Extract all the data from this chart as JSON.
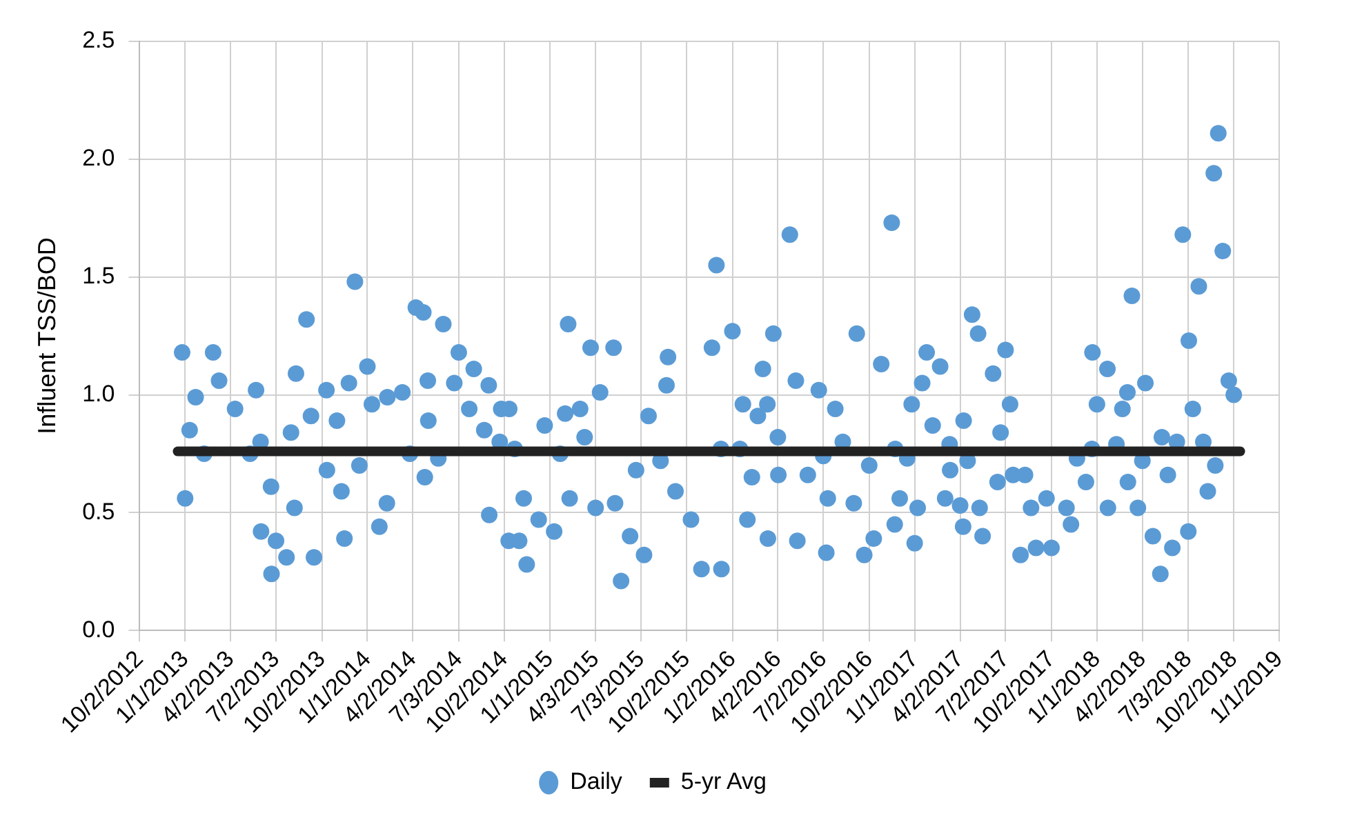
{
  "chart_data": {
    "type": "scatter",
    "ylabel": "Influent TSS/BOD",
    "xlim": [
      "2012-10-02",
      "2019-01-01"
    ],
    "xticks": [
      {
        "value": "2012-10-02",
        "label": "10/2/2012"
      },
      {
        "value": "2013-01-01",
        "label": "1/1/2013"
      },
      {
        "value": "2013-04-02",
        "label": "4/2/2013"
      },
      {
        "value": "2013-07-02",
        "label": "7/2/2013"
      },
      {
        "value": "2013-10-02",
        "label": "10/2/2013"
      },
      {
        "value": "2014-01-01",
        "label": "1/1/2014"
      },
      {
        "value": "2014-04-02",
        "label": "4/2/2014"
      },
      {
        "value": "2014-07-03",
        "label": "7/3/2014"
      },
      {
        "value": "2014-10-02",
        "label": "10/2/2014"
      },
      {
        "value": "2015-01-01",
        "label": "1/1/2015"
      },
      {
        "value": "2015-04-03",
        "label": "4/3/2015"
      },
      {
        "value": "2015-07-03",
        "label": "7/3/2015"
      },
      {
        "value": "2015-10-02",
        "label": "10/2/2015"
      },
      {
        "value": "2016-01-02",
        "label": "1/2/2016"
      },
      {
        "value": "2016-04-02",
        "label": "4/2/2016"
      },
      {
        "value": "2016-07-02",
        "label": "7/2/2016"
      },
      {
        "value": "2016-10-02",
        "label": "10/2/2016"
      },
      {
        "value": "2017-01-01",
        "label": "1/1/2017"
      },
      {
        "value": "2017-04-02",
        "label": "4/2/2017"
      },
      {
        "value": "2017-07-02",
        "label": "7/2/2017"
      },
      {
        "value": "2017-10-02",
        "label": "10/2/2017"
      },
      {
        "value": "2018-01-01",
        "label": "1/1/2018"
      },
      {
        "value": "2018-04-02",
        "label": "4/2/2018"
      },
      {
        "value": "2018-07-03",
        "label": "7/3/2018"
      },
      {
        "value": "2018-10-02",
        "label": "10/2/2018"
      },
      {
        "value": "2019-01-01",
        "label": "1/1/2019"
      }
    ],
    "ylim": [
      0,
      2.5
    ],
    "yticks": [
      {
        "value": 0,
        "label": "0.0"
      },
      {
        "value": 0.5,
        "label": "0.5"
      },
      {
        "value": 1,
        "label": "1.0"
      },
      {
        "value": 1.5,
        "label": "1.5"
      },
      {
        "value": 2,
        "label": "2.0"
      },
      {
        "value": 2.5,
        "label": "2.5"
      }
    ],
    "grid": true,
    "legend": "bottom",
    "series": [
      {
        "name": "Daily",
        "marker": "circle",
        "color": "#5b9bd5",
        "x": [
          "2012-12-26",
          "2013-01-01",
          "2013-01-10",
          "2013-01-22",
          "2013-02-08",
          "2013-02-26",
          "2013-03-10",
          "2013-04-11",
          "2013-05-11",
          "2013-05-23",
          "2013-06-01",
          "2013-06-02",
          "2013-06-22",
          "2013-06-23",
          "2013-07-02",
          "2013-07-23",
          "2013-08-01",
          "2013-08-08",
          "2013-08-11",
          "2013-09-01",
          "2013-09-10",
          "2013-09-16",
          "2013-10-11",
          "2013-10-12",
          "2013-11-01",
          "2013-11-10",
          "2013-11-16",
          "2013-11-25",
          "2013-12-07",
          "2013-12-16",
          "2014-01-01",
          "2014-01-10",
          "2014-01-25",
          "2014-02-09",
          "2014-02-10",
          "2014-03-12",
          "2014-03-27",
          "2014-04-08",
          "2014-04-23",
          "2014-04-26",
          "2014-05-02",
          "2014-05-03",
          "2014-05-23",
          "2014-06-02",
          "2014-06-24",
          "2014-07-03",
          "2014-07-24",
          "2014-08-02",
          "2014-08-23",
          "2014-09-01",
          "2014-09-02",
          "2014-09-23",
          "2014-09-26",
          "2014-10-11",
          "2014-10-12",
          "2014-10-23",
          "2014-11-01",
          "2014-11-10",
          "2014-11-16",
          "2014-12-10",
          "2014-12-22",
          "2015-01-10",
          "2015-01-22",
          "2015-02-01",
          "2015-02-07",
          "2015-02-10",
          "2015-03-03",
          "2015-03-12",
          "2015-03-24",
          "2015-04-12",
          "2015-04-03",
          "2015-05-09",
          "2015-05-12",
          "2015-05-24",
          "2015-06-11",
          "2015-06-23",
          "2015-07-09",
          "2015-07-18",
          "2015-08-11",
          "2015-08-23",
          "2015-08-26",
          "2015-09-10",
          "2015-10-11",
          "2015-11-01",
          "2015-11-22",
          "2015-12-01",
          "2015-12-10",
          "2015-12-11",
          "2016-01-02",
          "2016-01-17",
          "2016-01-23",
          "2016-02-01",
          "2016-02-10",
          "2016-02-22",
          "2016-03-03",
          "2016-03-12",
          "2016-03-13",
          "2016-03-24",
          "2016-04-02",
          "2016-04-03",
          "2016-04-26",
          "2016-05-08",
          "2016-05-11",
          "2016-06-01",
          "2016-06-23",
          "2016-07-02",
          "2016-07-08",
          "2016-07-11",
          "2016-07-26",
          "2016-08-10",
          "2016-09-01",
          "2016-09-07",
          "2016-09-22",
          "2016-10-02",
          "2016-10-11",
          "2016-10-26",
          "2016-11-16",
          "2016-11-22",
          "2016-11-23",
          "2016-12-02",
          "2016-12-17",
          "2016-12-26",
          "2017-01-01",
          "2017-01-07",
          "2017-01-16",
          "2017-01-25",
          "2017-02-06",
          "2017-02-21",
          "2017-03-03",
          "2017-03-12",
          "2017-03-13",
          "2017-04-02",
          "2017-04-08",
          "2017-04-09",
          "2017-04-17",
          "2017-04-26",
          "2017-05-08",
          "2017-05-11",
          "2017-05-17",
          "2017-06-07",
          "2017-06-16",
          "2017-06-22",
          "2017-07-02",
          "2017-07-11",
          "2017-07-17",
          "2017-08-01",
          "2017-08-10",
          "2017-08-22",
          "2017-09-01",
          "2017-09-22",
          "2017-10-02",
          "2017-11-01",
          "2017-11-10",
          "2017-11-22",
          "2017-12-10",
          "2017-12-22",
          "2017-12-23",
          "2018-01-01",
          "2018-01-22",
          "2018-01-23",
          "2018-02-09",
          "2018-02-21",
          "2018-03-03",
          "2018-03-04",
          "2018-03-12",
          "2018-03-24",
          "2018-04-02",
          "2018-04-08",
          "2018-04-23",
          "2018-05-08",
          "2018-05-11",
          "2018-05-23",
          "2018-06-01",
          "2018-06-10",
          "2018-06-22",
          "2018-07-03",
          "2018-07-04",
          "2018-07-12",
          "2018-07-24",
          "2018-08-02",
          "2018-08-11",
          "2018-08-23",
          "2018-08-26",
          "2018-09-01",
          "2018-09-10",
          "2018-09-22",
          "2018-10-02"
        ],
        "values": [
          1.18,
          0.56,
          0.85,
          0.99,
          0.75,
          1.18,
          1.06,
          0.94,
          0.75,
          1.02,
          0.8,
          0.42,
          0.61,
          0.24,
          0.38,
          0.31,
          0.84,
          0.52,
          1.09,
          1.32,
          0.91,
          0.31,
          1.02,
          0.68,
          0.89,
          0.59,
          0.39,
          1.05,
          1.48,
          0.7,
          1.12,
          0.96,
          0.44,
          0.54,
          0.99,
          1.01,
          0.75,
          1.37,
          1.35,
          0.65,
          1.06,
          0.89,
          0.73,
          1.3,
          1.05,
          1.18,
          0.94,
          1.11,
          0.85,
          1.04,
          0.49,
          0.8,
          0.94,
          0.38,
          0.94,
          0.77,
          0.38,
          0.56,
          0.28,
          0.47,
          0.87,
          0.42,
          0.75,
          0.92,
          1.3,
          0.56,
          0.94,
          0.82,
          1.2,
          1.01,
          0.52,
          1.2,
          0.54,
          0.21,
          0.4,
          0.68,
          0.32,
          0.91,
          0.72,
          1.04,
          1.16,
          0.59,
          0.47,
          0.26,
          1.2,
          1.55,
          0.77,
          0.26,
          1.27,
          0.77,
          0.96,
          0.47,
          0.65,
          0.91,
          1.11,
          0.96,
          0.39,
          1.26,
          0.82,
          0.66,
          1.68,
          1.06,
          0.38,
          0.66,
          1.02,
          0.74,
          0.33,
          0.56,
          0.94,
          0.8,
          0.54,
          1.26,
          0.32,
          0.7,
          0.39,
          1.13,
          1.73,
          0.45,
          0.77,
          0.56,
          0.73,
          0.96,
          0.37,
          0.52,
          1.05,
          1.18,
          0.87,
          1.12,
          0.56,
          0.79,
          0.68,
          0.53,
          0.44,
          0.89,
          0.72,
          1.34,
          1.26,
          0.52,
          0.4,
          1.09,
          0.63,
          0.84,
          1.19,
          0.96,
          0.66,
          0.32,
          0.66,
          0.52,
          0.35,
          0.56,
          0.35,
          0.52,
          0.45,
          0.73,
          0.63,
          0.77,
          1.18,
          0.96,
          1.11,
          0.52,
          0.79,
          0.94,
          1.01,
          0.63,
          1.42,
          0.52,
          0.72,
          1.05,
          0.4,
          0.24,
          0.82,
          0.66,
          0.35,
          0.8,
          1.68,
          0.42,
          1.23,
          0.94,
          1.46,
          0.8,
          0.59,
          1.94,
          0.7,
          2.11,
          1.61,
          1.06,
          1.0
        ]
      },
      {
        "name": "5-yr Avg",
        "type": "line",
        "marker": "none",
        "line_style": "solid",
        "color": "#222222",
        "x": [
          "2012-12-17",
          "2018-10-15"
        ],
        "values": [
          0.76,
          0.76
        ]
      }
    ]
  }
}
